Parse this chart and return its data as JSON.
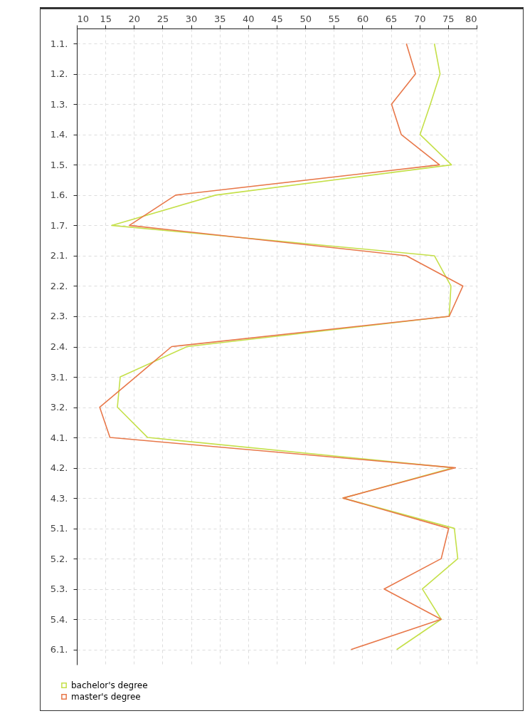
{
  "chart_data": {
    "type": "line",
    "orientation": "horizontal",
    "categories": [
      "1.1.",
      "1.2.",
      "1.3.",
      "1.4.",
      "1.5.",
      "1.6.",
      "1.7.",
      "2.1.",
      "2.2.",
      "2.3.",
      "2.4.",
      "3.1.",
      "3.2.",
      "4.1.",
      "4.2.",
      "4.3.",
      "5.1.",
      "5.2.",
      "5.3.",
      "5.4.",
      "6.1."
    ],
    "series": [
      {
        "name": "bachelor's degree",
        "color": "#c5e04a",
        "values": [
          72.6,
          73.6,
          71.9,
          70.1,
          75.6,
          34.3,
          16.1,
          72.6,
          75.5,
          75.2,
          29.3,
          17.6,
          17.1,
          22.4,
          75.9,
          56.6,
          76.1,
          76.7,
          70.5,
          73.8,
          66.0
        ]
      },
      {
        "name": "master's degree",
        "color": "#e8784a",
        "values": [
          67.7,
          69.3,
          65.1,
          66.8,
          73.5,
          27.3,
          19.2,
          67.7,
          77.6,
          75.2,
          26.6,
          20.3,
          14.0,
          15.8,
          76.3,
          56.6,
          75.1,
          73.8,
          63.8,
          73.8,
          58.0
        ]
      }
    ],
    "xlim": [
      10,
      80
    ],
    "xticks": [
      10,
      15,
      20,
      25,
      30,
      35,
      40,
      45,
      50,
      55,
      60,
      65,
      70,
      75,
      80
    ],
    "grid": true,
    "legend": "bottom left",
    "line_style": "solid",
    "marker": "none"
  }
}
